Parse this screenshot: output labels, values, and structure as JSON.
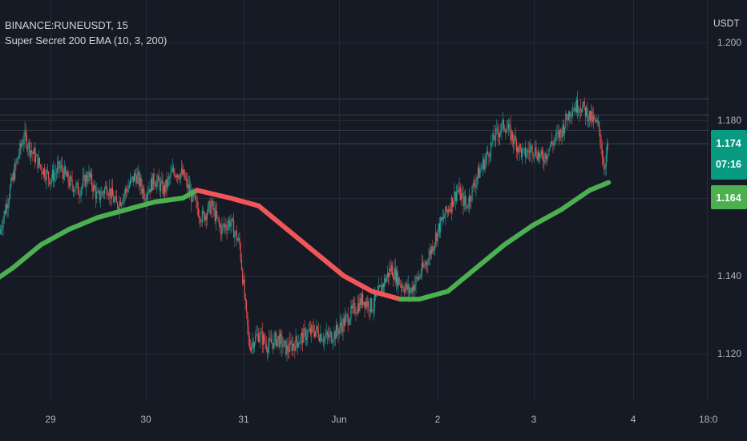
{
  "header": {
    "symbol": "BINANCE:RUNEUSDT, 15",
    "indicator": "Super Secret 200 EMA (10, 3, 200)"
  },
  "currency": "USDT",
  "colors": {
    "background": "#161a25",
    "grid": "#262a36",
    "up_candle": "#26a69a",
    "down_candle": "#ef5350",
    "ema_up": "#4caf50",
    "ema_down": "#f05659",
    "price_tag": "#089981",
    "ema_tag": "#4caf50",
    "level_line": "#2a4b4e"
  },
  "chart_data": {
    "type": "line",
    "y_ticks": [
      "1.200",
      "1.180",
      "1.160",
      "1.140",
      "1.120"
    ],
    "x_ticks": [
      "29",
      "30",
      "31",
      "Jun",
      "2",
      "3",
      "4",
      "18:0"
    ],
    "last_price": "1.174",
    "countdown": "07:16",
    "ema_value": "1.164",
    "price_series": [
      {
        "day": 28.0,
        "price": 1.145
      },
      {
        "day": 28.12,
        "price": 1.138
      },
      {
        "day": 28.25,
        "price": 1.134
      },
      {
        "day": 28.35,
        "price": 1.14
      },
      {
        "day": 28.45,
        "price": 1.15
      },
      {
        "day": 28.55,
        "price": 1.16
      },
      {
        "day": 28.65,
        "price": 1.17
      },
      {
        "day": 28.72,
        "price": 1.176
      },
      {
        "day": 28.8,
        "price": 1.172
      },
      {
        "day": 28.9,
        "price": 1.168
      },
      {
        "day": 29.0,
        "price": 1.165
      },
      {
        "day": 29.1,
        "price": 1.168
      },
      {
        "day": 29.2,
        "price": 1.164
      },
      {
        "day": 29.3,
        "price": 1.162
      },
      {
        "day": 29.4,
        "price": 1.166
      },
      {
        "day": 29.5,
        "price": 1.16
      },
      {
        "day": 29.6,
        "price": 1.163
      },
      {
        "day": 29.7,
        "price": 1.158
      },
      {
        "day": 29.8,
        "price": 1.162
      },
      {
        "day": 29.9,
        "price": 1.166
      },
      {
        "day": 30.0,
        "price": 1.161
      },
      {
        "day": 30.1,
        "price": 1.165
      },
      {
        "day": 30.2,
        "price": 1.162
      },
      {
        "day": 30.3,
        "price": 1.167
      },
      {
        "day": 30.4,
        "price": 1.166
      },
      {
        "day": 30.5,
        "price": 1.16
      },
      {
        "day": 30.6,
        "price": 1.155
      },
      {
        "day": 30.7,
        "price": 1.158
      },
      {
        "day": 30.8,
        "price": 1.152
      },
      {
        "day": 30.9,
        "price": 1.154
      },
      {
        "day": 31.0,
        "price": 1.148
      },
      {
        "day": 31.05,
        "price": 1.135
      },
      {
        "day": 31.1,
        "price": 1.122
      },
      {
        "day": 31.2,
        "price": 1.125
      },
      {
        "day": 31.3,
        "price": 1.122
      },
      {
        "day": 31.4,
        "price": 1.124
      },
      {
        "day": 31.5,
        "price": 1.121
      },
      {
        "day": 31.6,
        "price": 1.123
      },
      {
        "day": 31.7,
        "price": 1.125
      },
      {
        "day": 31.8,
        "price": 1.126
      },
      {
        "day": 31.9,
        "price": 1.124
      },
      {
        "day": 32.0,
        "price": 1.125
      },
      {
        "day": 32.1,
        "price": 1.128
      },
      {
        "day": 32.2,
        "price": 1.131
      },
      {
        "day": 32.3,
        "price": 1.134
      },
      {
        "day": 32.4,
        "price": 1.132
      },
      {
        "day": 32.5,
        "price": 1.137
      },
      {
        "day": 32.6,
        "price": 1.142
      },
      {
        "day": 32.7,
        "price": 1.138
      },
      {
        "day": 32.8,
        "price": 1.136
      },
      {
        "day": 32.9,
        "price": 1.14
      },
      {
        "day": 33.0,
        "price": 1.145
      },
      {
        "day": 33.1,
        "price": 1.152
      },
      {
        "day": 33.2,
        "price": 1.157
      },
      {
        "day": 33.3,
        "price": 1.162
      },
      {
        "day": 33.4,
        "price": 1.158
      },
      {
        "day": 33.5,
        "price": 1.165
      },
      {
        "day": 33.6,
        "price": 1.17
      },
      {
        "day": 33.7,
        "price": 1.176
      },
      {
        "day": 33.8,
        "price": 1.179
      },
      {
        "day": 33.9,
        "price": 1.175
      },
      {
        "day": 34.0,
        "price": 1.171
      },
      {
        "day": 34.1,
        "price": 1.173
      },
      {
        "day": 34.2,
        "price": 1.17
      },
      {
        "day": 34.3,
        "price": 1.174
      },
      {
        "day": 34.4,
        "price": 1.177
      },
      {
        "day": 34.5,
        "price": 1.183
      },
      {
        "day": 34.6,
        "price": 1.184
      },
      {
        "day": 34.7,
        "price": 1.181
      },
      {
        "day": 34.8,
        "price": 1.178
      },
      {
        "day": 34.85,
        "price": 1.168
      },
      {
        "day": 34.9,
        "price": 1.174
      }
    ],
    "ema_series": [
      {
        "day": 28.0,
        "ema": 1.136,
        "trend": "up"
      },
      {
        "day": 28.3,
        "ema": 1.137,
        "trend": "up"
      },
      {
        "day": 28.6,
        "ema": 1.142,
        "trend": "up"
      },
      {
        "day": 28.9,
        "ema": 1.148,
        "trend": "up"
      },
      {
        "day": 29.2,
        "ema": 1.152,
        "trend": "up"
      },
      {
        "day": 29.5,
        "ema": 1.155,
        "trend": "up"
      },
      {
        "day": 29.8,
        "ema": 1.157,
        "trend": "up"
      },
      {
        "day": 30.1,
        "ema": 1.159,
        "trend": "up"
      },
      {
        "day": 30.4,
        "ema": 1.16,
        "trend": "up"
      },
      {
        "day": 30.55,
        "ema": 1.162,
        "trend": "up"
      },
      {
        "day": 30.9,
        "ema": 1.16,
        "trend": "down"
      },
      {
        "day": 31.2,
        "ema": 1.158,
        "trend": "down"
      },
      {
        "day": 31.5,
        "ema": 1.152,
        "trend": "down"
      },
      {
        "day": 31.8,
        "ema": 1.146,
        "trend": "down"
      },
      {
        "day": 32.1,
        "ema": 1.14,
        "trend": "down"
      },
      {
        "day": 32.4,
        "ema": 1.136,
        "trend": "down"
      },
      {
        "day": 32.7,
        "ema": 1.134,
        "trend": "down"
      },
      {
        "day": 32.9,
        "ema": 1.134,
        "trend": "up"
      },
      {
        "day": 33.2,
        "ema": 1.136,
        "trend": "up"
      },
      {
        "day": 33.5,
        "ema": 1.142,
        "trend": "up"
      },
      {
        "day": 33.8,
        "ema": 1.148,
        "trend": "up"
      },
      {
        "day": 34.1,
        "ema": 1.153,
        "trend": "up"
      },
      {
        "day": 34.4,
        "ema": 1.157,
        "trend": "up"
      },
      {
        "day": 34.7,
        "ema": 1.162,
        "trend": "up"
      },
      {
        "day": 34.9,
        "ema": 1.164,
        "trend": "up"
      }
    ]
  }
}
